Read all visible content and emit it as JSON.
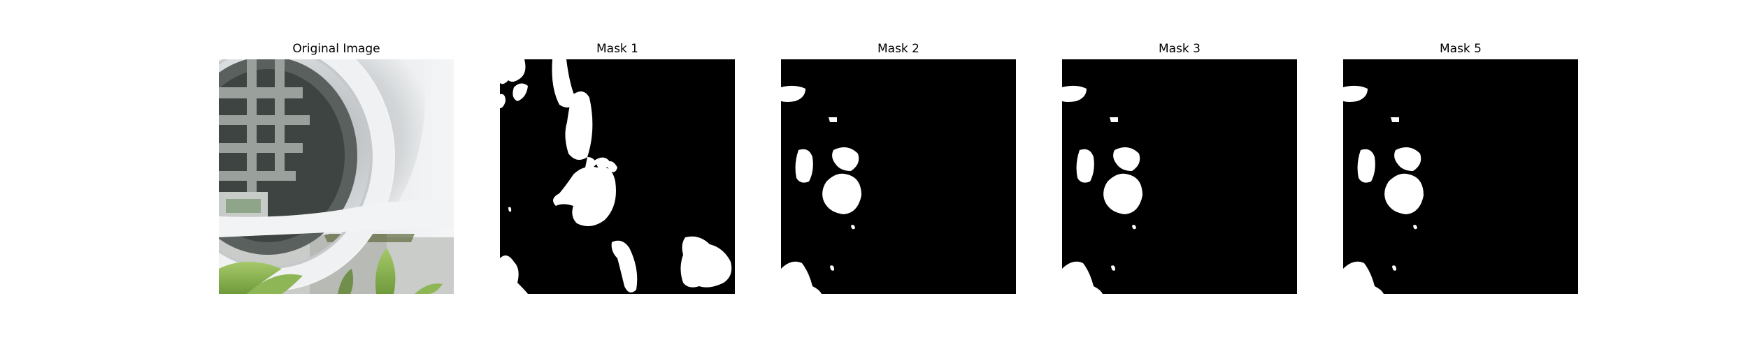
{
  "panels": [
    {
      "title": "Original Image"
    },
    {
      "title": "Mask 1"
    },
    {
      "title": "Mask 2"
    },
    {
      "title": "Mask 3"
    },
    {
      "title": "Mask 5"
    }
  ],
  "colors": {
    "background": "#ffffff",
    "mask_background": "#000000",
    "mask_foreground": "#ffffff"
  }
}
